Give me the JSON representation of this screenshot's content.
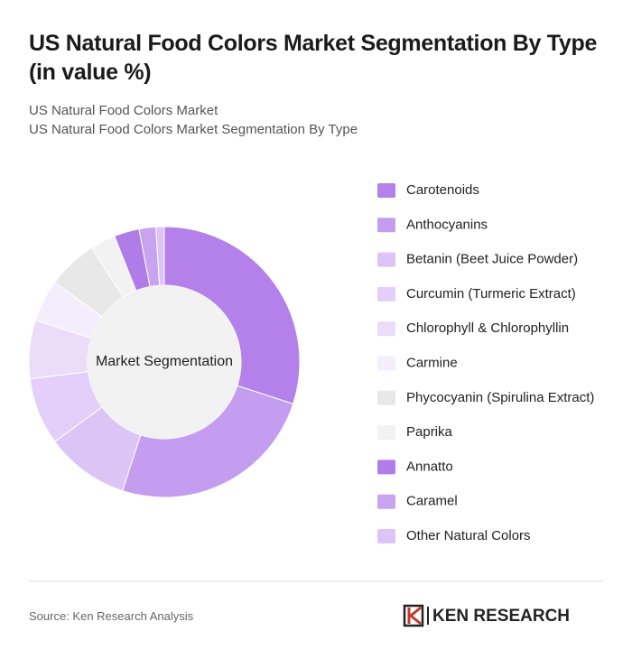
{
  "chart_data": {
    "type": "pie",
    "title": "US Natural Food Colors Market Segmentation By Type (in value %)",
    "subtitles": [
      "US Natural Food Colors Market",
      "US Natural Food Colors Market Segmentation By Type"
    ],
    "center_label": "Market Segmentation",
    "categories": [
      "Carotenoids",
      "Anthocyanins",
      "Betanin (Beet Juice Powder)",
      "Curcumin (Turmeric Extract)",
      "Chlorophyll & Chlorophyllin",
      "Carmine",
      "Phycocyanin (Spirulina Extract)",
      "Paprika",
      "Annatto",
      "Caramel",
      "Other Natural Colors"
    ],
    "values": [
      30,
      25,
      10,
      8,
      7,
      5,
      6,
      3,
      3,
      2,
      1
    ],
    "colors": [
      "#b480ea",
      "#c49cf0",
      "#dcc4f7",
      "#e3cff9",
      "#ebdcfa",
      "#f4edfc",
      "#e8e8e8",
      "#f2f2f2",
      "#b07ce8",
      "#c8a4f0",
      "#dcc4f7"
    ]
  },
  "footer": {
    "source": "Source: Ken Research Analysis",
    "logo": "KEN RESEARCH"
  }
}
